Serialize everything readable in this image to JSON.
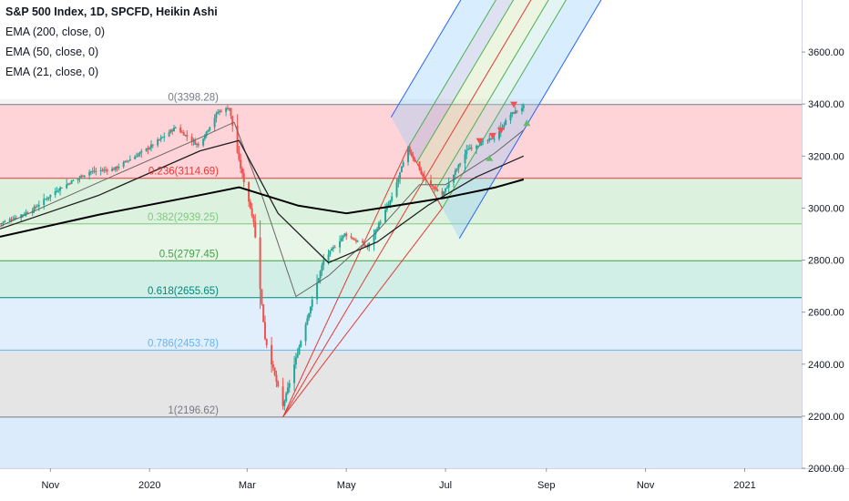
{
  "chart_data": {
    "type": "candlestick",
    "title": "S&P 500 Index, 1D, SPCFD, Heikin Ashi",
    "indicators": [
      {
        "label": "EMA (200, close, 0)",
        "color": "#000000"
      },
      {
        "label": "EMA (50, close, 0)",
        "color": "#1f1f1f"
      },
      {
        "label": "EMA (21, close, 0)",
        "color": "#555555"
      }
    ],
    "colors": {
      "up": "#26a69a",
      "down": "#ef5350",
      "ema200": "#000000",
      "ema50": "#222222",
      "ema21": "#666666",
      "pitchfork_outer": "#2962ff",
      "pitchfork_inner": "#4caf50",
      "pitchfork_median": "#e53935"
    },
    "y_axis": {
      "ticks": [
        "3600.00",
        "3400.00",
        "3200.00",
        "3000.00",
        "2800.00",
        "2600.00",
        "2400.00",
        "2200.00",
        "2000.00"
      ],
      "ylim": [
        2000,
        3800
      ]
    },
    "x_axis": {
      "ticks": [
        "Nov",
        "2020",
        "Mar",
        "May",
        "Jul",
        "Sep",
        "Nov",
        "2021"
      ],
      "xlim": [
        "2019-10-01",
        "2021-02-05"
      ]
    },
    "fib_levels": [
      {
        "ratio": "0",
        "value": 3398.28,
        "label": "0(3398.28)",
        "color": "#787b86",
        "fill": "#ffcdd2"
      },
      {
        "ratio": "0.236",
        "value": 3114.69,
        "label": "0.236(3114.69)",
        "color": "#e53935",
        "fill": "#d7f0d8"
      },
      {
        "ratio": "0.382",
        "value": 2939.25,
        "label": "0.382(2939.25)",
        "color": "#81c784",
        "fill": "#e3f4e3"
      },
      {
        "ratio": "0.5",
        "value": 2797.45,
        "label": "0.5(2797.45)",
        "color": "#43a047",
        "fill": "#c9ebe3"
      },
      {
        "ratio": "0.618",
        "value": 2655.65,
        "label": "0.618(2655.65)",
        "color": "#00897b",
        "fill": "#dcecfb"
      },
      {
        "ratio": "0.786",
        "value": 2453.78,
        "label": "0.786(2453.78)",
        "color": "#64b5f6",
        "fill": "#e0e0e0"
      },
      {
        "ratio": "1",
        "value": 2196.62,
        "label": "1(2196.62)",
        "color": "#787b86",
        "fill": "#d6e8fb"
      }
    ],
    "price_path": [
      [
        "2019-10-01",
        2940
      ],
      [
        "2019-10-20",
        2990
      ],
      [
        "2019-11-05",
        3070
      ],
      [
        "2019-11-25",
        3140
      ],
      [
        "2019-12-10",
        3150
      ],
      [
        "2019-12-31",
        3230
      ],
      [
        "2020-01-17",
        3310
      ],
      [
        "2020-01-31",
        3240
      ],
      [
        "2020-02-12",
        3370
      ],
      [
        "2020-02-19",
        3386
      ],
      [
        "2020-02-25",
        3180
      ],
      [
        "2020-03-05",
        2950
      ],
      [
        "2020-03-12",
        2500
      ],
      [
        "2020-03-23",
        2237
      ],
      [
        "2020-04-03",
        2490
      ],
      [
        "2020-04-17",
        2800
      ],
      [
        "2020-04-30",
        2900
      ],
      [
        "2020-05-14",
        2850
      ],
      [
        "2020-05-29",
        3040
      ],
      [
        "2020-06-08",
        3230
      ],
      [
        "2020-06-18",
        3110
      ],
      [
        "2020-06-29",
        3050
      ],
      [
        "2020-07-15",
        3230
      ],
      [
        "2020-07-31",
        3270
      ],
      [
        "2020-08-10",
        3360
      ],
      [
        "2020-08-18",
        3390
      ]
    ],
    "ema200_path": [
      [
        "2019-10-01",
        2890
      ],
      [
        "2019-12-01",
        2975
      ],
      [
        "2020-02-01",
        3050
      ],
      [
        "2020-02-25",
        3080
      ],
      [
        "2020-04-01",
        3010
      ],
      [
        "2020-05-01",
        2980
      ],
      [
        "2020-06-01",
        3010
      ],
      [
        "2020-07-01",
        3040
      ],
      [
        "2020-08-01",
        3080
      ],
      [
        "2020-08-18",
        3110
      ]
    ],
    "ema50_path": [
      [
        "2019-10-01",
        2920
      ],
      [
        "2019-12-01",
        3050
      ],
      [
        "2020-02-01",
        3220
      ],
      [
        "2020-02-25",
        3260
      ],
      [
        "2020-03-20",
        2980
      ],
      [
        "2020-04-20",
        2790
      ],
      [
        "2020-05-20",
        2870
      ],
      [
        "2020-06-20",
        3010
      ],
      [
        "2020-07-20",
        3120
      ],
      [
        "2020-08-18",
        3200
      ]
    ],
    "ema21_path": [
      [
        "2019-10-01",
        2930
      ],
      [
        "2019-12-01",
        3100
      ],
      [
        "2020-02-01",
        3270
      ],
      [
        "2020-02-22",
        3330
      ],
      [
        "2020-03-10",
        3050
      ],
      [
        "2020-03-31",
        2660
      ],
      [
        "2020-04-20",
        2740
      ],
      [
        "2020-05-20",
        2910
      ],
      [
        "2020-06-15",
        3090
      ],
      [
        "2020-07-01",
        3090
      ],
      [
        "2020-07-31",
        3210
      ],
      [
        "2020-08-18",
        3300
      ]
    ],
    "pitchfork": {
      "pivot": [
        "2020-03-23",
        2196.62
      ],
      "a": [
        "2020-06-08",
        3233
      ],
      "b": [
        "2020-06-29",
        3000
      ],
      "end": "2021-02-05"
    },
    "markers": [
      {
        "x": "2020-07-22",
        "y": 3255,
        "shape": "down",
        "color": "#ef5350"
      },
      {
        "x": "2020-07-30",
        "y": 3275,
        "shape": "down",
        "color": "#ef5350"
      },
      {
        "x": "2020-08-04",
        "y": 3295,
        "shape": "down",
        "color": "#ef5350"
      },
      {
        "x": "2020-08-12",
        "y": 3395,
        "shape": "down",
        "color": "#ef5350"
      },
      {
        "x": "2020-07-28",
        "y": 3195,
        "shape": "up",
        "color": "#66bb6a"
      },
      {
        "x": "2020-08-20",
        "y": 3330,
        "shape": "up",
        "color": "#66bb6a"
      }
    ]
  }
}
